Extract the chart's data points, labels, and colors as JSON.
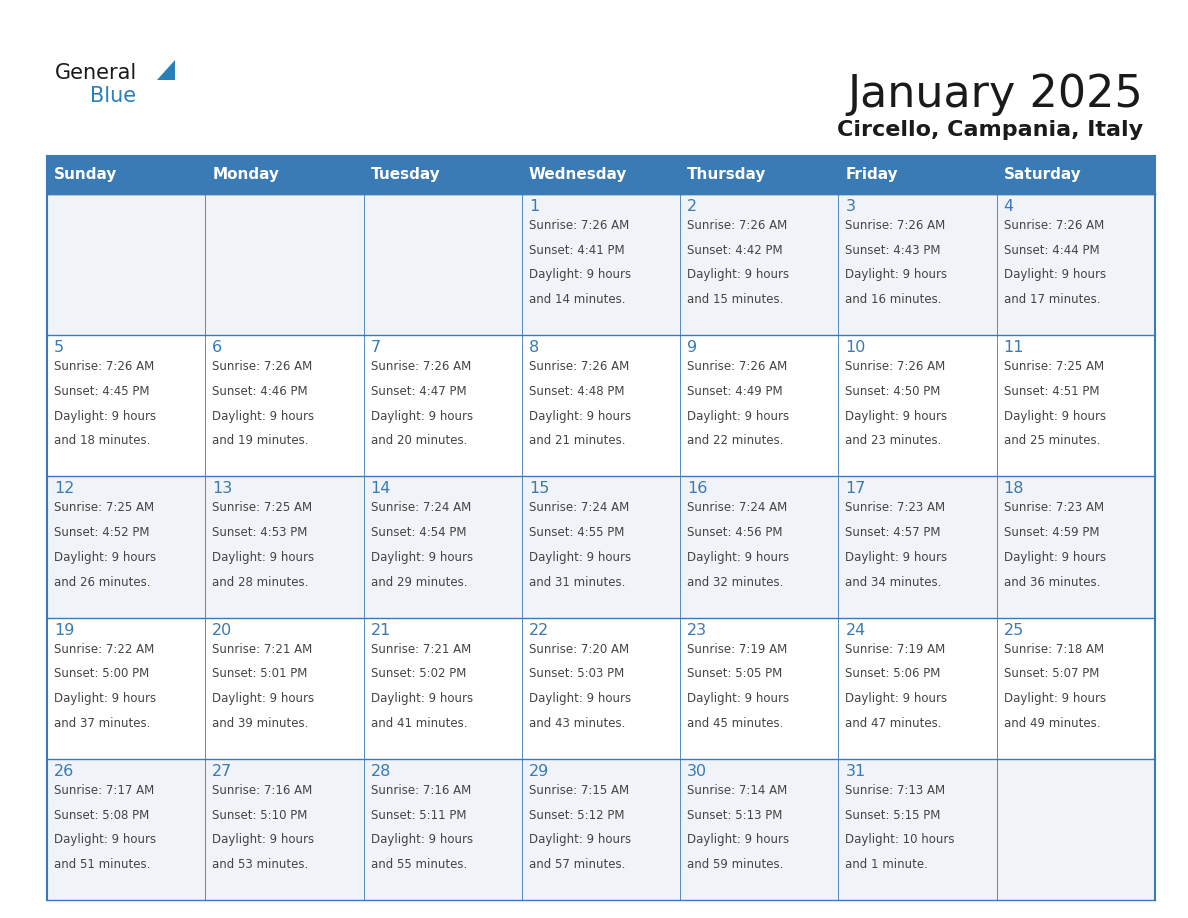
{
  "title": "January 2025",
  "subtitle": "Circello, Campania, Italy",
  "header_bg": "#3a7ab5",
  "header_text_color": "#ffffff",
  "row_bg_light": "#f0f4f8",
  "row_bg_white": "#ffffff",
  "day_number_color": "#3a7ab5",
  "cell_text_color": "#444444",
  "grid_line_color": "#3a7ab5",
  "weekdays": [
    "Sunday",
    "Monday",
    "Tuesday",
    "Wednesday",
    "Thursday",
    "Friday",
    "Saturday"
  ],
  "weeks": [
    [
      {
        "day": null,
        "sunrise": null,
        "sunset": null,
        "daylight": null
      },
      {
        "day": null,
        "sunrise": null,
        "sunset": null,
        "daylight": null
      },
      {
        "day": null,
        "sunrise": null,
        "sunset": null,
        "daylight": null
      },
      {
        "day": 1,
        "sunrise": "7:26 AM",
        "sunset": "4:41 PM",
        "daylight": "9 hours\nand 14 minutes."
      },
      {
        "day": 2,
        "sunrise": "7:26 AM",
        "sunset": "4:42 PM",
        "daylight": "9 hours\nand 15 minutes."
      },
      {
        "day": 3,
        "sunrise": "7:26 AM",
        "sunset": "4:43 PM",
        "daylight": "9 hours\nand 16 minutes."
      },
      {
        "day": 4,
        "sunrise": "7:26 AM",
        "sunset": "4:44 PM",
        "daylight": "9 hours\nand 17 minutes."
      }
    ],
    [
      {
        "day": 5,
        "sunrise": "7:26 AM",
        "sunset": "4:45 PM",
        "daylight": "9 hours\nand 18 minutes."
      },
      {
        "day": 6,
        "sunrise": "7:26 AM",
        "sunset": "4:46 PM",
        "daylight": "9 hours\nand 19 minutes."
      },
      {
        "day": 7,
        "sunrise": "7:26 AM",
        "sunset": "4:47 PM",
        "daylight": "9 hours\nand 20 minutes."
      },
      {
        "day": 8,
        "sunrise": "7:26 AM",
        "sunset": "4:48 PM",
        "daylight": "9 hours\nand 21 minutes."
      },
      {
        "day": 9,
        "sunrise": "7:26 AM",
        "sunset": "4:49 PM",
        "daylight": "9 hours\nand 22 minutes."
      },
      {
        "day": 10,
        "sunrise": "7:26 AM",
        "sunset": "4:50 PM",
        "daylight": "9 hours\nand 23 minutes."
      },
      {
        "day": 11,
        "sunrise": "7:25 AM",
        "sunset": "4:51 PM",
        "daylight": "9 hours\nand 25 minutes."
      }
    ],
    [
      {
        "day": 12,
        "sunrise": "7:25 AM",
        "sunset": "4:52 PM",
        "daylight": "9 hours\nand 26 minutes."
      },
      {
        "day": 13,
        "sunrise": "7:25 AM",
        "sunset": "4:53 PM",
        "daylight": "9 hours\nand 28 minutes."
      },
      {
        "day": 14,
        "sunrise": "7:24 AM",
        "sunset": "4:54 PM",
        "daylight": "9 hours\nand 29 minutes."
      },
      {
        "day": 15,
        "sunrise": "7:24 AM",
        "sunset": "4:55 PM",
        "daylight": "9 hours\nand 31 minutes."
      },
      {
        "day": 16,
        "sunrise": "7:24 AM",
        "sunset": "4:56 PM",
        "daylight": "9 hours\nand 32 minutes."
      },
      {
        "day": 17,
        "sunrise": "7:23 AM",
        "sunset": "4:57 PM",
        "daylight": "9 hours\nand 34 minutes."
      },
      {
        "day": 18,
        "sunrise": "7:23 AM",
        "sunset": "4:59 PM",
        "daylight": "9 hours\nand 36 minutes."
      }
    ],
    [
      {
        "day": 19,
        "sunrise": "7:22 AM",
        "sunset": "5:00 PM",
        "daylight": "9 hours\nand 37 minutes."
      },
      {
        "day": 20,
        "sunrise": "7:21 AM",
        "sunset": "5:01 PM",
        "daylight": "9 hours\nand 39 minutes."
      },
      {
        "day": 21,
        "sunrise": "7:21 AM",
        "sunset": "5:02 PM",
        "daylight": "9 hours\nand 41 minutes."
      },
      {
        "day": 22,
        "sunrise": "7:20 AM",
        "sunset": "5:03 PM",
        "daylight": "9 hours\nand 43 minutes."
      },
      {
        "day": 23,
        "sunrise": "7:19 AM",
        "sunset": "5:05 PM",
        "daylight": "9 hours\nand 45 minutes."
      },
      {
        "day": 24,
        "sunrise": "7:19 AM",
        "sunset": "5:06 PM",
        "daylight": "9 hours\nand 47 minutes."
      },
      {
        "day": 25,
        "sunrise": "7:18 AM",
        "sunset": "5:07 PM",
        "daylight": "9 hours\nand 49 minutes."
      }
    ],
    [
      {
        "day": 26,
        "sunrise": "7:17 AM",
        "sunset": "5:08 PM",
        "daylight": "9 hours\nand 51 minutes."
      },
      {
        "day": 27,
        "sunrise": "7:16 AM",
        "sunset": "5:10 PM",
        "daylight": "9 hours\nand 53 minutes."
      },
      {
        "day": 28,
        "sunrise": "7:16 AM",
        "sunset": "5:11 PM",
        "daylight": "9 hours\nand 55 minutes."
      },
      {
        "day": 29,
        "sunrise": "7:15 AM",
        "sunset": "5:12 PM",
        "daylight": "9 hours\nand 57 minutes."
      },
      {
        "day": 30,
        "sunrise": "7:14 AM",
        "sunset": "5:13 PM",
        "daylight": "9 hours\nand 59 minutes."
      },
      {
        "day": 31,
        "sunrise": "7:13 AM",
        "sunset": "5:15 PM",
        "daylight": "10 hours\nand 1 minute."
      },
      {
        "day": null,
        "sunrise": null,
        "sunset": null,
        "daylight": null
      }
    ]
  ],
  "logo_general_color": "#1a1a1a",
  "logo_blue_color": "#2980b9",
  "logo_triangle_color": "#2980b9"
}
